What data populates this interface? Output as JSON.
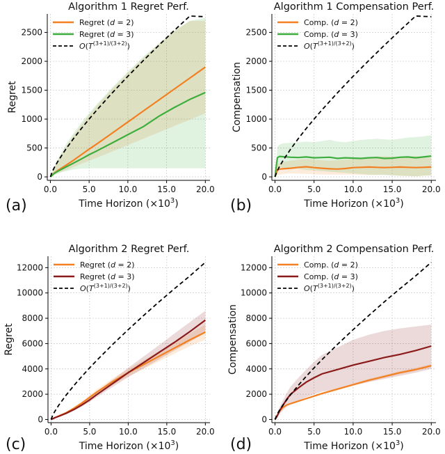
{
  "chart_data": [
    {
      "type": "line",
      "panel": "(a)",
      "title": "Algorithm 1 Regret Perf.",
      "xlabel": "Time Horizon (×10",
      "xlabel_sup": "3",
      "xlabel_close": ")",
      "ylabel": "Regret",
      "xlim": [
        -0.4,
        20.6
      ],
      "ylim": [
        -60,
        2820
      ],
      "xticks": [
        0,
        5,
        10,
        15,
        20
      ],
      "xtick_labels": [
        "0.0",
        "5.0",
        "10.0",
        "15.0",
        "20.0"
      ],
      "yticks": [
        0,
        500,
        1000,
        1500,
        2000,
        2500
      ],
      "ytick_labels": [
        "0",
        "500",
        "1000",
        "1500",
        "2000",
        "2500"
      ],
      "legend": [
        {
          "label": "Regret (d = 2)",
          "color": "#f28022",
          "style": "solid"
        },
        {
          "label": "Regret (d = 3)",
          "color": "#3dae3d",
          "style": "solid"
        },
        {
          "label": "O(T^((3+1)/(3+2)))",
          "color": "#000000",
          "style": "dashed"
        }
      ],
      "series": [
        {
          "name": "Regret (d = 2)",
          "color": "#f28022",
          "style": "solid",
          "x": [
            0,
            0.5,
            1,
            2,
            3,
            4,
            5,
            6,
            8,
            10,
            12,
            14,
            16,
            18,
            20
          ],
          "y": [
            0,
            65,
            115,
            200,
            290,
            385,
            480,
            570,
            760,
            950,
            1140,
            1330,
            1520,
            1710,
            1900
          ],
          "band_lower": [
            0,
            40,
            70,
            120,
            170,
            225,
            280,
            330,
            440,
            550,
            660,
            770,
            880,
            990,
            1100
          ],
          "band_upper": [
            0,
            160,
            290,
            520,
            720,
            900,
            1070,
            1230,
            1530,
            1800,
            2060,
            2300,
            2520,
            2700,
            2700
          ]
        },
        {
          "name": "Regret (d = 3)",
          "color": "#3dae3d",
          "style": "solid",
          "x": [
            0,
            0.5,
            1,
            2,
            3,
            4,
            5,
            6,
            8,
            10,
            12,
            14,
            16,
            18,
            20
          ],
          "y": [
            0,
            60,
            100,
            170,
            240,
            310,
            385,
            450,
            590,
            730,
            870,
            1050,
            1200,
            1340,
            1460
          ],
          "band_lower": [
            0,
            30,
            60,
            100,
            130,
            145,
            150,
            150,
            150,
            150,
            150,
            150,
            150,
            150,
            150
          ],
          "band_upper": [
            0,
            180,
            320,
            560,
            760,
            940,
            1100,
            1260,
            1550,
            1820,
            2080,
            2310,
            2530,
            2700,
            2750
          ]
        },
        {
          "name": "O(T^((3+1)/(3+2)))",
          "color": "#000000",
          "style": "dashed",
          "x": [
            0,
            0.25,
            0.5,
            1,
            2,
            3,
            4,
            5,
            6,
            8,
            10,
            12,
            14,
            16,
            18,
            20
          ],
          "y": [
            0,
            92,
            159,
            276,
            481,
            665,
            837,
            1000,
            1157,
            1456,
            1741,
            2014,
            2278,
            2534,
            2784,
            2772
          ]
        }
      ]
    },
    {
      "type": "line",
      "panel": "(b)",
      "title": "Algorithm 1 Compensation Perf.",
      "xlabel": "Time Horizon (×10",
      "xlabel_sup": "3",
      "xlabel_close": ")",
      "ylabel": "Compensation",
      "xlim": [
        -0.4,
        20.6
      ],
      "ylim": [
        -60,
        2820
      ],
      "xticks": [
        0,
        5,
        10,
        15,
        20
      ],
      "xtick_labels": [
        "0.0",
        "5.0",
        "10.0",
        "15.0",
        "20.0"
      ],
      "yticks": [
        0,
        500,
        1000,
        1500,
        2000,
        2500
      ],
      "ytick_labels": [
        "0",
        "500",
        "1000",
        "1500",
        "2000",
        "2500"
      ],
      "legend": [
        {
          "label": "Comp. (d = 2)",
          "color": "#f28022",
          "style": "solid"
        },
        {
          "label": "Comp. (d = 3)",
          "color": "#3dae3d",
          "style": "solid"
        },
        {
          "label": "O(T^((3+1)/(3+2)))",
          "color": "#000000",
          "style": "dashed"
        }
      ],
      "series": [
        {
          "name": "Comp. (d = 2)",
          "color": "#f28022",
          "style": "solid",
          "x": [
            0,
            0.3,
            0.6,
            1,
            2,
            3,
            4,
            5,
            6,
            7,
            8,
            9,
            10,
            11,
            12,
            13,
            14,
            15,
            16,
            17,
            18,
            19,
            20
          ],
          "y": [
            0,
            120,
            135,
            140,
            150,
            165,
            175,
            160,
            150,
            140,
            135,
            145,
            160,
            165,
            170,
            165,
            160,
            165,
            170,
            165,
            160,
            165,
            170
          ],
          "band_lower": [
            0,
            30,
            40,
            50,
            60,
            55,
            50,
            45,
            40,
            40,
            38,
            40,
            40,
            35,
            30,
            35,
            40,
            30,
            20,
            15,
            10,
            20,
            20
          ],
          "band_upper": [
            0,
            220,
            240,
            260,
            280,
            300,
            310,
            300,
            290,
            280,
            290,
            300,
            310,
            330,
            340,
            350,
            360,
            350,
            340,
            350,
            360,
            340,
            330
          ]
        },
        {
          "name": "Comp. (d = 3)",
          "color": "#3dae3d",
          "style": "solid",
          "x": [
            0,
            0.3,
            0.6,
            1,
            2,
            3,
            4,
            5,
            6,
            7,
            8,
            9,
            10,
            11,
            12,
            13,
            14,
            15,
            16,
            17,
            18,
            19,
            20
          ],
          "y": [
            0,
            330,
            355,
            350,
            340,
            335,
            345,
            330,
            335,
            340,
            320,
            330,
            325,
            320,
            330,
            335,
            320,
            325,
            340,
            345,
            330,
            345,
            360
          ],
          "band_lower": [
            0,
            150,
            170,
            160,
            150,
            140,
            120,
            110,
            100,
            90,
            80,
            70,
            60,
            50,
            40,
            35,
            30,
            25,
            20,
            15,
            10,
            20,
            30
          ],
          "band_upper": [
            0,
            520,
            560,
            580,
            590,
            600,
            610,
            600,
            620,
            640,
            610,
            600,
            620,
            640,
            650,
            660,
            650,
            640,
            660,
            680,
            690,
            700,
            720
          ]
        },
        {
          "name": "O(T^((3+1)/(3+2)))",
          "color": "#000000",
          "style": "dashed",
          "x": [
            0,
            0.25,
            0.5,
            1,
            2,
            3,
            4,
            5,
            6,
            8,
            10,
            12,
            14,
            16,
            18,
            20
          ],
          "y": [
            0,
            92,
            159,
            276,
            481,
            665,
            837,
            1000,
            1157,
            1456,
            1741,
            2014,
            2278,
            2534,
            2784,
            2772
          ]
        }
      ]
    },
    {
      "type": "line",
      "panel": "(c)",
      "title": "Algorithm 2 Regret Perf.",
      "xlabel": "Time Horizon (×10",
      "xlabel_sup": "3",
      "xlabel_close": ")",
      "ylabel": "Regret",
      "xlim": [
        -0.4,
        20.6
      ],
      "ylim": [
        -250,
        12900
      ],
      "xticks": [
        0,
        5,
        10,
        15,
        20
      ],
      "xtick_labels": [
        "0.0",
        "5.0",
        "10.0",
        "15.0",
        "20.0"
      ],
      "yticks": [
        0,
        2000,
        4000,
        6000,
        8000,
        10000,
        12000
      ],
      "ytick_labels": [
        "0",
        "2000",
        "4000",
        "6000",
        "8000",
        "10000",
        "12000"
      ],
      "legend": [
        {
          "label": "Regret (d = 2)",
          "color": "#f28022",
          "style": "solid"
        },
        {
          "label": "Regret (d = 3)",
          "color": "#8b1a1a",
          "style": "solid"
        },
        {
          "label": "O(T^((3+1)/(3+2)))",
          "color": "#000000",
          "style": "dashed"
        }
      ],
      "series": [
        {
          "name": "Regret (d = 2)",
          "color": "#f28022",
          "style": "solid",
          "x": [
            0,
            0.5,
            1,
            2,
            3,
            4,
            5,
            6,
            8,
            10,
            12,
            14,
            16,
            18,
            20
          ],
          "y": [
            0,
            150,
            280,
            550,
            900,
            1300,
            1750,
            2200,
            3000,
            3700,
            4350,
            5000,
            5650,
            6300,
            6900
          ],
          "band_lower": [
            0,
            130,
            240,
            480,
            800,
            1170,
            1580,
            2000,
            2750,
            3400,
            4000,
            4600,
            5200,
            5800,
            6300
          ],
          "band_upper": [
            0,
            170,
            320,
            620,
            1000,
            1430,
            1920,
            2400,
            3250,
            4000,
            4700,
            5400,
            6100,
            6800,
            7500
          ]
        },
        {
          "name": "Regret (d = 3)",
          "color": "#8b1a1a",
          "style": "solid",
          "x": [
            0,
            0.5,
            1,
            2,
            3,
            4,
            5,
            6,
            8,
            10,
            12,
            14,
            16,
            18,
            20
          ],
          "y": [
            0,
            140,
            250,
            500,
            800,
            1150,
            1550,
            2000,
            2850,
            3700,
            4500,
            5300,
            6100,
            6950,
            7850
          ],
          "band_lower": [
            0,
            120,
            220,
            440,
            710,
            1030,
            1390,
            1800,
            2580,
            3350,
            4050,
            4750,
            5450,
            6150,
            6850
          ],
          "band_upper": [
            0,
            160,
            290,
            570,
            900,
            1290,
            1730,
            2220,
            3150,
            4080,
            4980,
            5880,
            6800,
            7700,
            8600
          ]
        },
        {
          "name": "O(T^((3+1)/(3+2)))",
          "color": "#000000",
          "style": "dashed",
          "x": [
            0,
            0.25,
            0.5,
            1,
            2,
            3,
            4,
            5,
            6,
            8,
            10,
            12,
            14,
            16,
            18,
            20
          ],
          "y": [
            0,
            380,
            650,
            1130,
            1960,
            2710,
            3410,
            4080,
            4720,
            5940,
            7100,
            8220,
            9300,
            10340,
            11350,
            12420
          ]
        }
      ]
    },
    {
      "type": "line",
      "panel": "(d)",
      "title": "Algorithm 2 Compensation Perf.",
      "xlabel": "Time Horizon (×10",
      "xlabel_sup": "3",
      "xlabel_close": ")",
      "ylabel": "Compensation",
      "xlim": [
        -0.4,
        20.6
      ],
      "ylim": [
        -250,
        12900
      ],
      "xticks": [
        0,
        5,
        10,
        15,
        20
      ],
      "xtick_labels": [
        "0.0",
        "5.0",
        "10.0",
        "15.0",
        "20.0"
      ],
      "yticks": [
        0,
        2000,
        4000,
        6000,
        8000,
        10000,
        12000
      ],
      "ytick_labels": [
        "0",
        "2000",
        "4000",
        "6000",
        "8000",
        "10000",
        "12000"
      ],
      "legend": [
        {
          "label": "Comp. (d = 2)",
          "color": "#f28022",
          "style": "solid"
        },
        {
          "label": "Comp. (d = 3)",
          "color": "#8b1a1a",
          "style": "solid"
        },
        {
          "label": "O(T^((3+1)/(3+2)))",
          "color": "#000000",
          "style": "dashed"
        }
      ],
      "series": [
        {
          "name": "Comp. (d = 2)",
          "color": "#f28022",
          "style": "solid",
          "x": [
            0,
            0.3,
            0.6,
            1,
            1.5,
            2,
            3,
            4,
            5,
            6,
            8,
            10,
            12,
            14,
            16,
            18,
            20
          ],
          "y": [
            0,
            350,
            650,
            950,
            1150,
            1250,
            1450,
            1650,
            1850,
            2050,
            2400,
            2750,
            3100,
            3400,
            3700,
            3950,
            4250
          ],
          "band_lower": [
            0,
            330,
            620,
            910,
            1100,
            1200,
            1400,
            1590,
            1780,
            1970,
            2310,
            2650,
            2990,
            3280,
            3570,
            3820,
            4110
          ],
          "band_upper": [
            0,
            370,
            680,
            990,
            1200,
            1300,
            1500,
            1710,
            1920,
            2130,
            2490,
            2850,
            3210,
            3520,
            3830,
            4080,
            4390
          ]
        },
        {
          "name": "Comp. (d = 3)",
          "color": "#8b1a1a",
          "style": "solid",
          "x": [
            0,
            0.3,
            0.6,
            1,
            1.5,
            2,
            3,
            4,
            5,
            6,
            8,
            10,
            12,
            14,
            16,
            18,
            20
          ],
          "y": [
            0,
            300,
            700,
            1100,
            1600,
            2000,
            2500,
            2950,
            3300,
            3600,
            3950,
            4300,
            4600,
            4900,
            5150,
            5450,
            5800
          ],
          "band_lower": [
            0,
            200,
            450,
            700,
            1000,
            1200,
            1500,
            1750,
            2000,
            2200,
            2400,
            2700,
            2950,
            3200,
            3450,
            3700,
            4000
          ],
          "band_upper": [
            0,
            450,
            1000,
            1500,
            2100,
            2600,
            3300,
            3950,
            4550,
            5100,
            5700,
            6300,
            6700,
            7000,
            7200,
            7350,
            7500
          ]
        },
        {
          "name": "O(T^((3+1)/(3+2)))",
          "color": "#000000",
          "style": "dashed",
          "x": [
            0,
            0.25,
            0.5,
            1,
            2,
            3,
            4,
            5,
            6,
            8,
            10,
            12,
            14,
            16,
            18,
            20
          ],
          "y": [
            0,
            380,
            650,
            1130,
            1960,
            2710,
            3410,
            4080,
            4720,
            5940,
            7100,
            8220,
            9300,
            10340,
            11350,
            12420
          ]
        }
      ]
    }
  ]
}
